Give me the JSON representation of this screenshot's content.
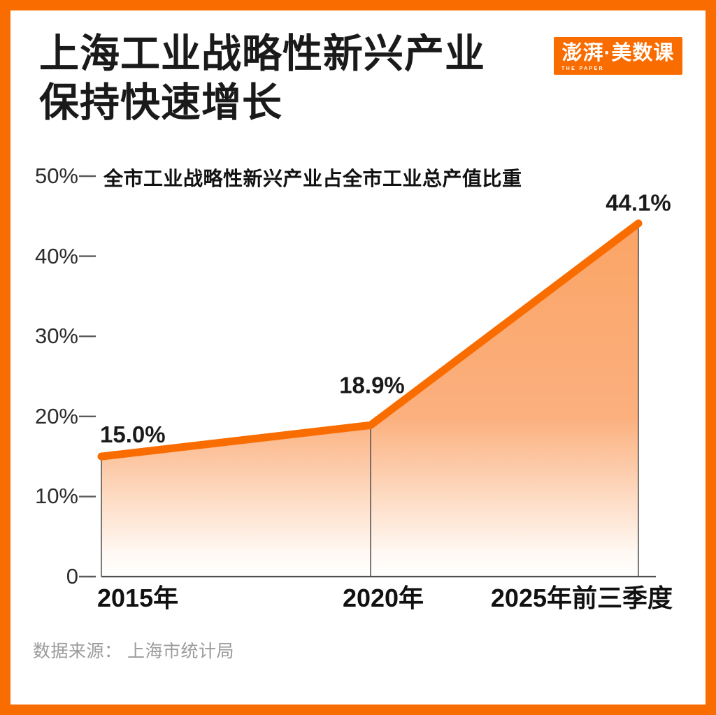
{
  "page": {
    "background_color": "#FFFFFF",
    "frame_color": "#F96C00"
  },
  "header": {
    "title_line1": "上海工业战略性新兴产业",
    "title_line2": "保持快速增长",
    "logo": {
      "text": "澎湃·美数课",
      "subtext": "THE PAPER",
      "bg_color": "#F96C00",
      "text_color": "#FFFFFF"
    }
  },
  "chart_data": {
    "type": "area",
    "title": "全市工业战略性新兴产业占全市工业总产值比重",
    "categories": [
      "2015年",
      "2020年",
      "2025年前三季度"
    ],
    "values": [
      15.0,
      18.9,
      44.1
    ],
    "point_labels": [
      "15.0%",
      "18.9%",
      "44.1%"
    ],
    "ylim": [
      0,
      50
    ],
    "y_ticks": [
      {
        "value": 50,
        "label": "50%"
      },
      {
        "value": 40,
        "label": "40%"
      },
      {
        "value": 30,
        "label": "30%"
      },
      {
        "value": 20,
        "label": "20%"
      },
      {
        "value": 10,
        "label": "10%"
      },
      {
        "value": 0,
        "label": "0"
      }
    ],
    "xlabel": "",
    "ylabel": "",
    "grid": false,
    "legend": "none",
    "line_color": "#F96C00",
    "fill_top_color": "#FBA466",
    "fill_bottom_color": "#FFFFFF",
    "axis_color": "#4F4F4F"
  },
  "footer": {
    "source": "数据来源： 上海市统计局"
  }
}
